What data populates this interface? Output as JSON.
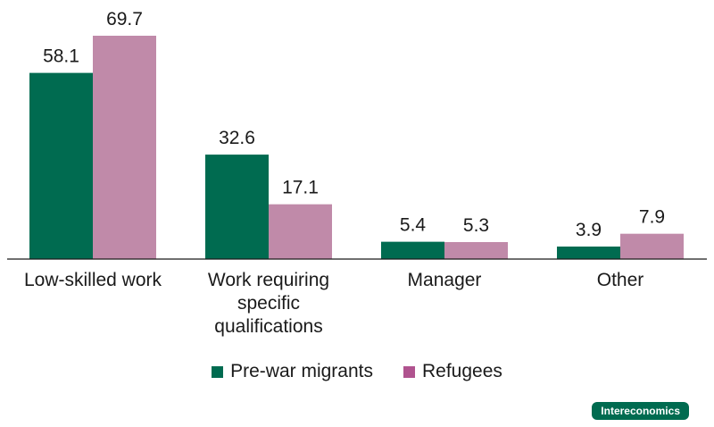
{
  "chart_data": {
    "type": "bar",
    "categories": [
      "Low-skilled work",
      "Work requiring specific qualifications",
      "Manager",
      "Other"
    ],
    "category_lines": [
      [
        "Low-skilled work"
      ],
      [
        "Work requiring",
        "specific",
        "qualifications"
      ],
      [
        "Manager"
      ],
      [
        "Other"
      ]
    ],
    "series": [
      {
        "name": "Pre-war migrants",
        "color": "#006b50",
        "values": [
          58.1,
          32.6,
          5.4,
          3.9
        ]
      },
      {
        "name": "Refugees",
        "color": "#c08aa9",
        "values": [
          69.7,
          17.1,
          5.3,
          7.9
        ]
      }
    ],
    "ylim": [
      0,
      69.7
    ],
    "grid": false,
    "legend_position": "bottom"
  },
  "legend_swatch_colors": [
    "#006b50",
    "#b0538f"
  ],
  "badge": {
    "text": "Intereconomics",
    "color": "#006b50"
  }
}
